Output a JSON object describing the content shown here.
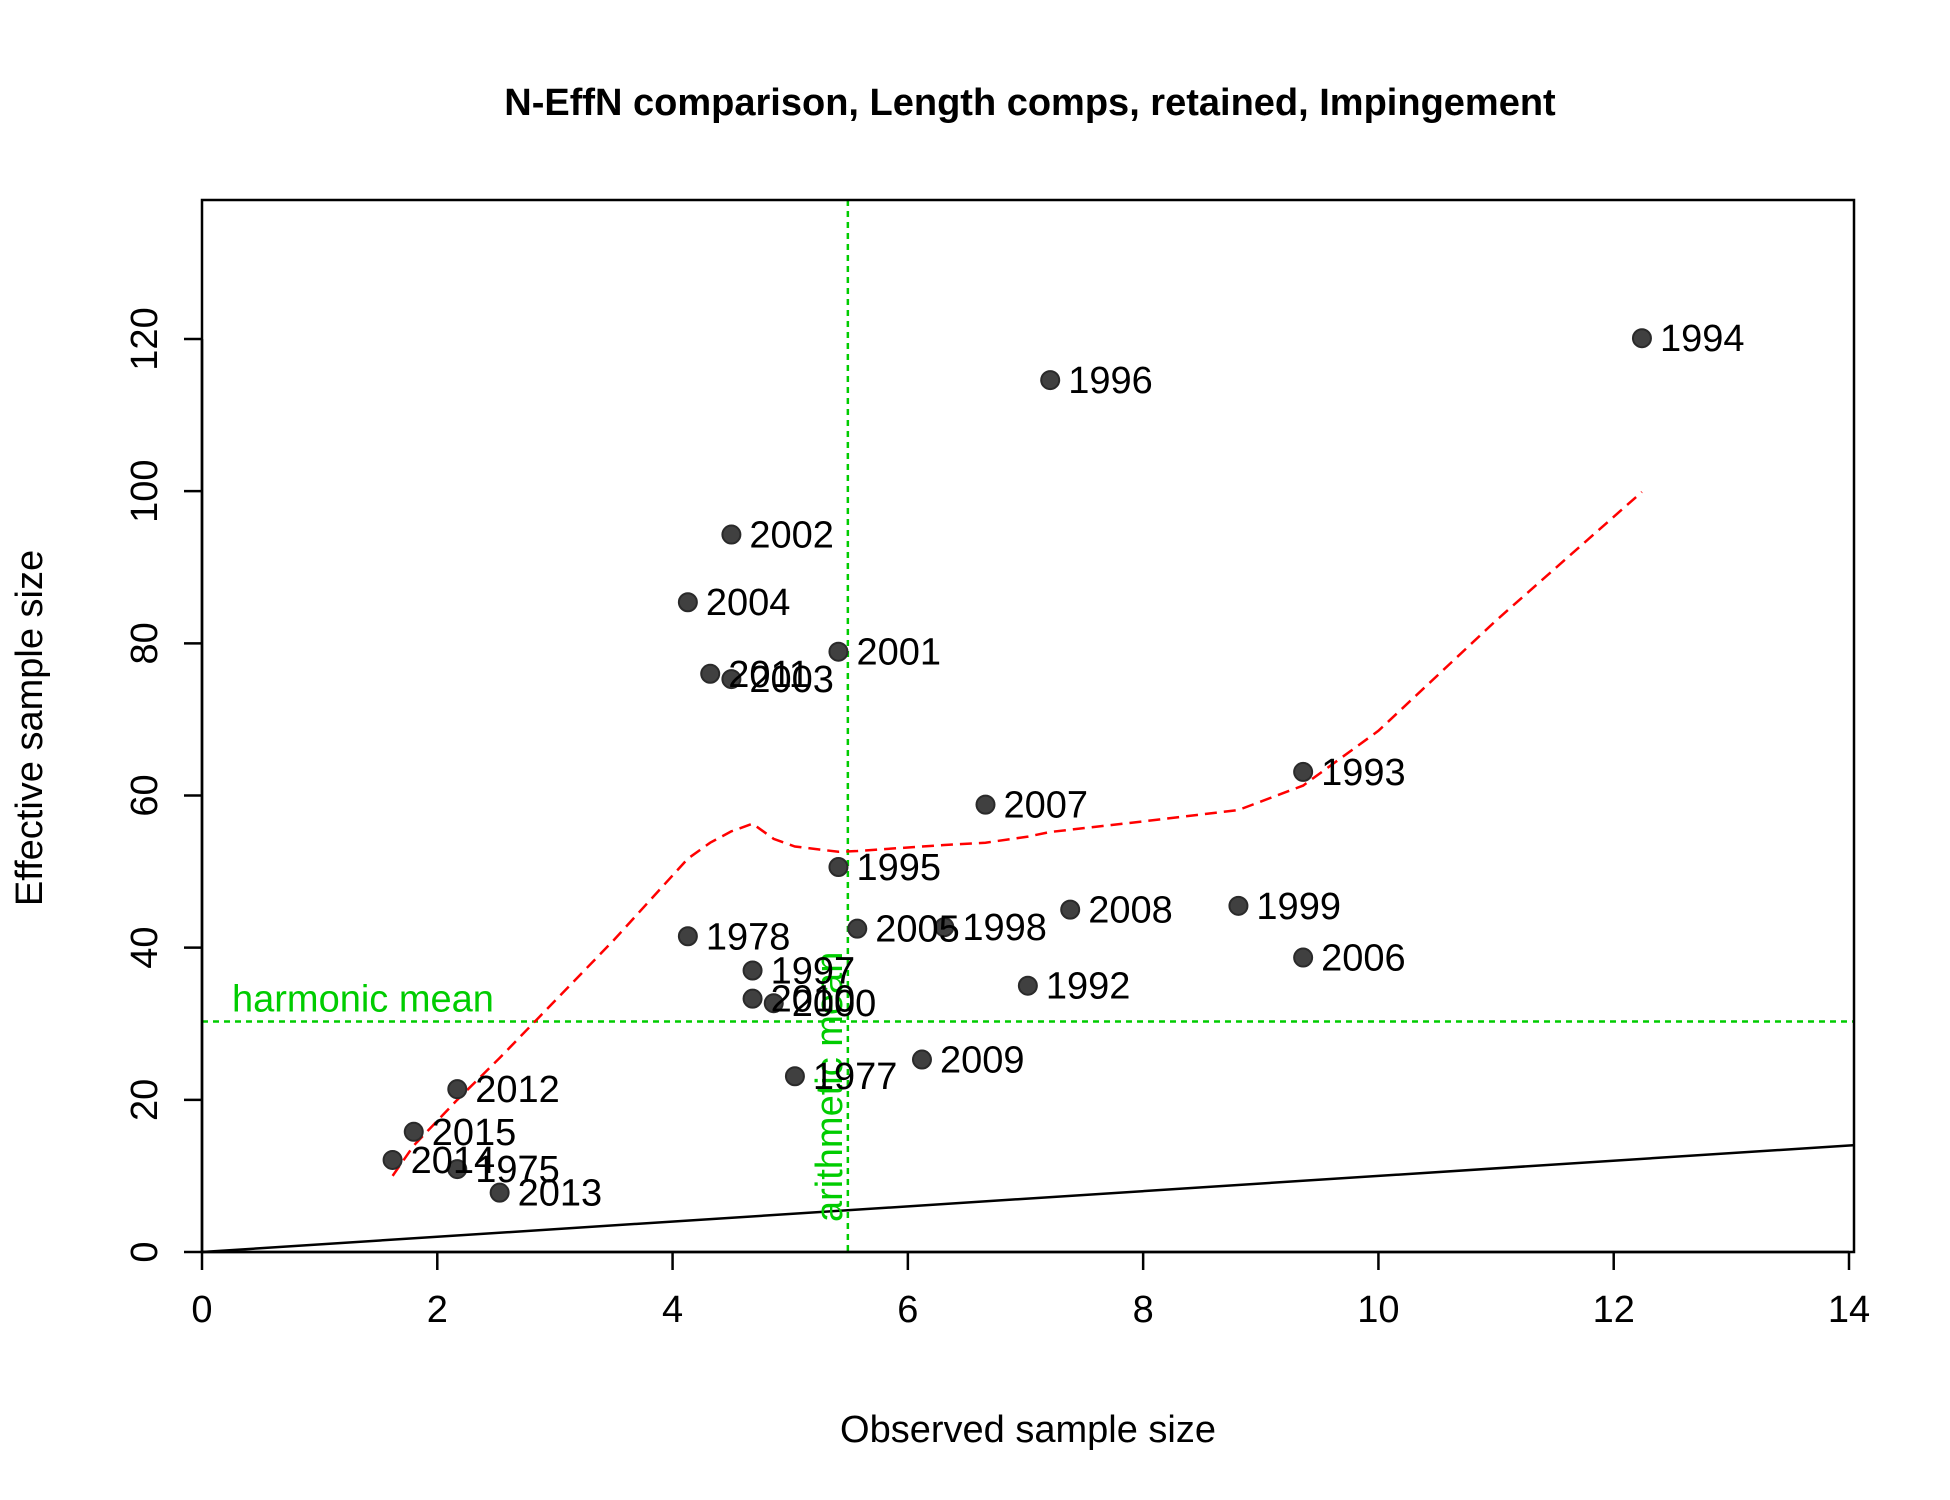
{
  "chart_data": {
    "type": "scatter",
    "title": "N-EffN comparison, Length comps, retained, Impingement",
    "xlabel": "Observed sample size",
    "ylabel": "Effective sample size",
    "xlim": [
      0,
      14
    ],
    "ylim": [
      0,
      132
    ],
    "x_ticks": [
      0,
      2,
      4,
      6,
      8,
      10,
      12,
      14
    ],
    "y_ticks": [
      0,
      20,
      40,
      60,
      80,
      100,
      120
    ],
    "x_tick_labels": [
      "0",
      "2",
      "4",
      "6",
      "8",
      "10",
      "12",
      "14"
    ],
    "y_tick_labels": [
      "0",
      "20",
      "40",
      "60",
      "80",
      "100",
      "120"
    ],
    "grid": false,
    "legend": "none",
    "colors": {
      "points": "#404040",
      "reference_lines": "#00cc00",
      "smoother": "#ff0000",
      "one_to_one": "#000000"
    },
    "points": [
      {
        "label": "1975",
        "x": 2.17,
        "y": 10.9
      },
      {
        "label": "1977",
        "x": 5.04,
        "y": 23.1
      },
      {
        "label": "1978",
        "x": 4.13,
        "y": 41.5
      },
      {
        "label": "1992",
        "x": 7.02,
        "y": 35.0
      },
      {
        "label": "1993",
        "x": 9.36,
        "y": 63.1
      },
      {
        "label": "1994",
        "x": 12.24,
        "y": 120.1
      },
      {
        "label": "1995",
        "x": 5.41,
        "y": 50.6
      },
      {
        "label": "1996",
        "x": 7.21,
        "y": 114.6
      },
      {
        "label": "1997",
        "x": 4.68,
        "y": 37.0
      },
      {
        "label": "1998",
        "x": 6.31,
        "y": 42.7
      },
      {
        "label": "1999",
        "x": 8.81,
        "y": 45.5
      },
      {
        "label": "2000",
        "x": 4.86,
        "y": 32.7
      },
      {
        "label": "2001",
        "x": 5.41,
        "y": 78.9
      },
      {
        "label": "2002",
        "x": 4.5,
        "y": 94.3
      },
      {
        "label": "2003",
        "x": 4.5,
        "y": 75.3
      },
      {
        "label": "2004",
        "x": 4.13,
        "y": 85.4
      },
      {
        "label": "2005",
        "x": 5.57,
        "y": 42.5
      },
      {
        "label": "2006",
        "x": 9.36,
        "y": 38.7
      },
      {
        "label": "2007",
        "x": 6.66,
        "y": 58.8
      },
      {
        "label": "2008",
        "x": 7.38,
        "y": 45.0
      },
      {
        "label": "2009",
        "x": 6.12,
        "y": 25.3
      },
      {
        "label": "2010",
        "x": 4.68,
        "y": 33.3
      },
      {
        "label": "2011",
        "x": 4.32,
        "y": 76.0
      },
      {
        "label": "2012",
        "x": 2.17,
        "y": 21.4
      },
      {
        "label": "2013",
        "x": 2.53,
        "y": 7.8
      },
      {
        "label": "2014",
        "x": 1.62,
        "y": 12.1
      },
      {
        "label": "2015",
        "x": 1.8,
        "y": 15.8
      }
    ],
    "smoother": {
      "x": [
        1.62,
        1.8,
        2.17,
        2.53,
        3.0,
        3.5,
        4.13,
        4.32,
        4.5,
        4.68,
        4.86,
        5.04,
        5.41,
        5.57,
        6.12,
        6.31,
        6.66,
        7.02,
        7.21,
        7.38,
        8.0,
        8.81,
        9.36,
        10.0,
        11.0,
        12.24
      ],
      "y": [
        10.0,
        14.0,
        20.0,
        25.5,
        33.0,
        41.0,
        51.7,
        53.8,
        55.3,
        56.3,
        54.3,
        53.3,
        52.6,
        52.7,
        53.3,
        53.5,
        53.8,
        54.6,
        55.2,
        55.5,
        56.6,
        58.1,
        61.3,
        68.5,
        83.0,
        99.9
      ]
    },
    "one_to_one_line": {
      "x": [
        0,
        14.05
      ],
      "y": [
        0,
        14.05
      ]
    },
    "harmonic_mean": {
      "value": 30.3,
      "label": "harmonic mean"
    },
    "arithmetic_mean": {
      "value": 5.49,
      "label": "arithmetic mean"
    }
  }
}
